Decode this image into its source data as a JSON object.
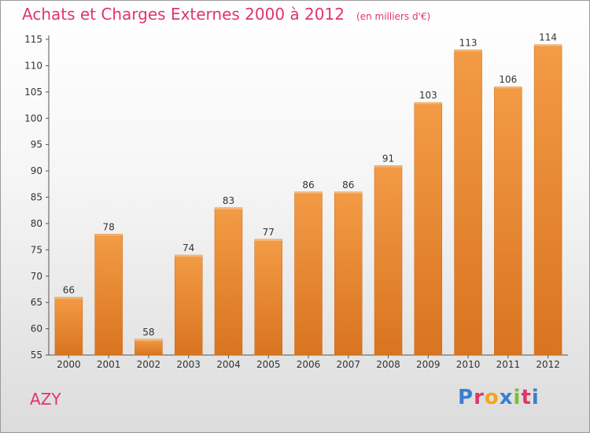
{
  "chart_data": {
    "type": "bar",
    "title": "Achats et Charges Externes 2000 à 2012",
    "subtitle": "(en milliers d'€)",
    "categories": [
      "2000",
      "2001",
      "2002",
      "2003",
      "2004",
      "2005",
      "2006",
      "2007",
      "2008",
      "2009",
      "2010",
      "2011",
      "2012"
    ],
    "values": [
      66,
      78,
      58,
      74,
      83,
      77,
      86,
      86,
      91,
      103,
      113,
      106,
      114
    ],
    "ylim": [
      55,
      115
    ],
    "yticks": [
      55,
      60,
      65,
      70,
      75,
      80,
      85,
      90,
      95,
      100,
      105,
      110,
      115
    ],
    "grid": false,
    "bar_color": "#f39b45",
    "bar_color_dark": "#d97420"
  },
  "footer": {
    "commune": "AZY",
    "logo": "Proxiti",
    "logo_colors": [
      "#3b7fd0",
      "#e0356b",
      "#f2a51a",
      "#3b7fd0",
      "#7cbf2e",
      "#e0356b",
      "#3b7fd0"
    ]
  }
}
